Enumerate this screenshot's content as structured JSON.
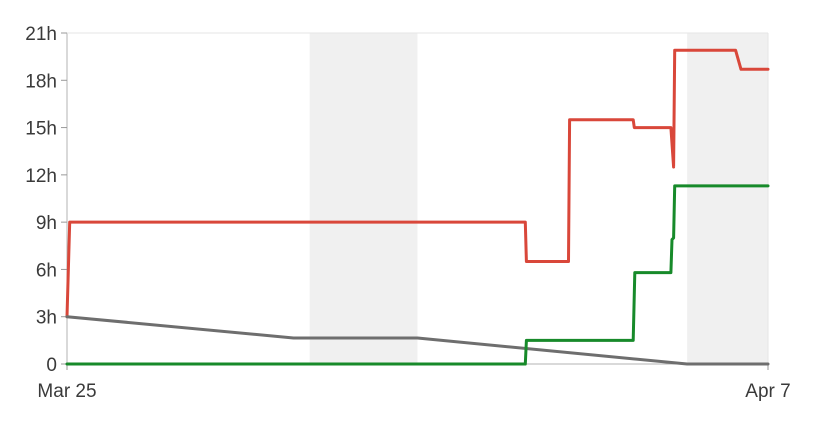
{
  "chart_data": {
    "type": "line",
    "x_range": [
      "Mar 25",
      "Apr 7"
    ],
    "x_ticks": [
      {
        "x": 0,
        "label": "Mar 25"
      },
      {
        "x": 13,
        "label": "Apr 7"
      }
    ],
    "y_range": [
      0,
      21
    ],
    "y_ticks": [
      {
        "value": 0,
        "label": "0"
      },
      {
        "value": 3,
        "label": "3h"
      },
      {
        "value": 6,
        "label": "6h"
      },
      {
        "value": 9,
        "label": "9h"
      },
      {
        "value": 12,
        "label": "12h"
      },
      {
        "value": 15,
        "label": "15h"
      },
      {
        "value": 18,
        "label": "18h"
      },
      {
        "value": 21,
        "label": "21h"
      }
    ],
    "shaded_x_bands": [
      [
        4.5,
        6.5
      ],
      [
        11.5,
        13
      ]
    ],
    "series": [
      {
        "color": "#d9473a",
        "points": [
          [
            0,
            3
          ],
          [
            0.05,
            9
          ],
          [
            8.5,
            9
          ],
          [
            8.52,
            6.5
          ],
          [
            9.3,
            6.5
          ],
          [
            9.32,
            15.5
          ],
          [
            10.5,
            15.5
          ],
          [
            10.52,
            15
          ],
          [
            11.2,
            15
          ],
          [
            11.25,
            12.5
          ],
          [
            11.27,
            19.9
          ],
          [
            12.4,
            19.9
          ],
          [
            12.5,
            18.7
          ],
          [
            13,
            18.7
          ]
        ]
      },
      {
        "color": "#6e6e6e",
        "points": [
          [
            0,
            3
          ],
          [
            4.2,
            1.65
          ],
          [
            6.5,
            1.65
          ],
          [
            11.5,
            0
          ],
          [
            13,
            0
          ]
        ]
      },
      {
        "color": "#178a2a",
        "points": [
          [
            0,
            0
          ],
          [
            8.5,
            0
          ],
          [
            8.52,
            1.5
          ],
          [
            10.5,
            1.5
          ],
          [
            10.53,
            5.8
          ],
          [
            11.2,
            5.8
          ],
          [
            11.22,
            7.9
          ],
          [
            11.25,
            8.0
          ],
          [
            11.27,
            11.3
          ],
          [
            13,
            11.3
          ]
        ]
      }
    ]
  }
}
